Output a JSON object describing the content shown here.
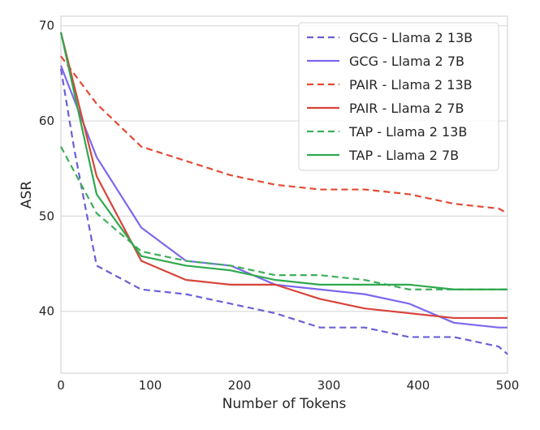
{
  "chart_data": {
    "type": "line",
    "xlabel": "Number of Tokens",
    "ylabel": "ASR",
    "xlim": [
      0,
      500
    ],
    "ylim": [
      33.5,
      71
    ],
    "xticks": [
      0,
      100,
      200,
      300,
      400,
      500
    ],
    "yticks": [
      40,
      50,
      60,
      70
    ],
    "grid": "horizontal",
    "legend_position": "top-right",
    "series": [
      {
        "name": "GCG - Llama 2 13B",
        "color": "#6a60d6",
        "style": "dashed",
        "x": [
          0,
          15,
          40,
          90,
          140,
          190,
          240,
          290,
          340,
          390,
          440,
          490,
          500
        ],
        "y": [
          65.5,
          57,
          44.8,
          42.3,
          41.8,
          40.8,
          39.8,
          38.3,
          38.3,
          37.3,
          37.3,
          36.3,
          35.5
        ]
      },
      {
        "name": "GCG - Llama 2 7B",
        "color": "#7b68ee",
        "style": "solid",
        "x": [
          0,
          40,
          90,
          140,
          190,
          240,
          290,
          340,
          390,
          440,
          490,
          500
        ],
        "y": [
          65.8,
          56.2,
          48.8,
          45.3,
          44.8,
          42.8,
          42.3,
          41.8,
          40.8,
          38.8,
          38.3,
          38.3
        ]
      },
      {
        "name": "PAIR - Llama 2 13B",
        "color": "#e24a33",
        "style": "dashed",
        "x": [
          0,
          40,
          90,
          140,
          190,
          240,
          290,
          340,
          390,
          440,
          490,
          500
        ],
        "y": [
          66.8,
          61.8,
          57.3,
          55.8,
          54.3,
          53.3,
          52.8,
          52.8,
          52.3,
          51.3,
          50.8,
          50.3
        ]
      },
      {
        "name": "PAIR - Llama 2 7B",
        "color": "#d8433a",
        "style": "solid",
        "x": [
          0,
          40,
          90,
          140,
          190,
          240,
          290,
          340,
          390,
          440,
          490,
          500
        ],
        "y": [
          69.3,
          54.2,
          45.3,
          43.3,
          42.8,
          42.8,
          41.3,
          40.3,
          39.8,
          39.3,
          39.3,
          39.3
        ]
      },
      {
        "name": "TAP - Llama 2 13B",
        "color": "#3dae5a",
        "style": "dashed",
        "x": [
          0,
          40,
          90,
          140,
          190,
          240,
          290,
          340,
          390,
          440,
          490,
          500
        ],
        "y": [
          57.3,
          50.3,
          46.3,
          45.3,
          44.8,
          43.8,
          43.8,
          43.3,
          42.3,
          42.3,
          42.3,
          42.3
        ]
      },
      {
        "name": "TAP - Llama 2 7B",
        "color": "#2fa84f",
        "style": "solid",
        "x": [
          0,
          40,
          90,
          140,
          190,
          240,
          290,
          340,
          390,
          440,
          490,
          500
        ],
        "y": [
          69.3,
          52.3,
          45.8,
          44.8,
          44.3,
          43.3,
          42.8,
          42.8,
          42.8,
          42.3,
          42.3,
          42.3
        ]
      }
    ]
  }
}
